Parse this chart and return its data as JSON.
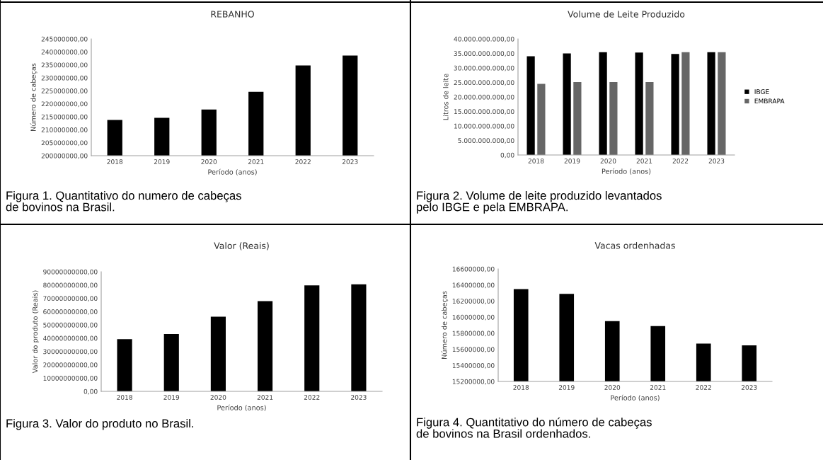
{
  "chart_data": [
    {
      "type": "bar",
      "title": "REBANHO",
      "xlabel": "Período (anos)",
      "ylabel": "Número de cabeças",
      "categories": [
        "2018",
        "2019",
        "2020",
        "2021",
        "2022",
        "2023"
      ],
      "series": [
        {
          "color": "#000000",
          "values": [
            213800000,
            214600000,
            217800000,
            224600000,
            234800000,
            238600000
          ]
        }
      ],
      "ylim": [
        200000000,
        245000000
      ],
      "yticks": [
        {
          "value": 200000000,
          "label": "200000000,00"
        },
        {
          "value": 205000000,
          "label": "205000000,00"
        },
        {
          "value": 210000000,
          "label": "210000000,00"
        },
        {
          "value": 215000000,
          "label": "215000000,00"
        },
        {
          "value": 220000000,
          "label": "220000000,00"
        },
        {
          "value": 225000000,
          "label": "225000000,00"
        },
        {
          "value": 230000000,
          "label": "230000000,00"
        },
        {
          "value": 235000000,
          "label": "235000000,00"
        },
        {
          "value": 240000000,
          "label": "240000000,00"
        },
        {
          "value": 245000000,
          "label": "245000000,00"
        }
      ],
      "grid": false,
      "legend": false,
      "annotations": [
        "Figura 1. Quantitativo do numero de cabeças\nde bovinos na Brasil."
      ]
    },
    {
      "type": "bar",
      "title": "Volume de Leite Produzido",
      "xlabel": "Período (anos)",
      "ylabel": "Litros de leite",
      "categories": [
        "2018",
        "2019",
        "2020",
        "2021",
        "2022",
        "2023"
      ],
      "series": [
        {
          "name": "IBGE",
          "color": "#000000",
          "values": [
            34000000000,
            35000000000,
            35400000000,
            35300000000,
            34800000000,
            35400000000
          ]
        },
        {
          "name": "EMBRAPA",
          "color": "#666666",
          "values": [
            24500000000,
            25100000000,
            25100000000,
            25100000000,
            35400000000,
            35400000000
          ]
        }
      ],
      "ylim": [
        0,
        40000000000
      ],
      "yticks": [
        {
          "value": 0,
          "label": "0,00"
        },
        {
          "value": 5000000000,
          "label": "5.000.000.000,00"
        },
        {
          "value": 10000000000,
          "label": "10.000.000.000,00"
        },
        {
          "value": 15000000000,
          "label": "15.000.000.000,00"
        },
        {
          "value": 20000000000,
          "label": "20.000.000.000,00"
        },
        {
          "value": 25000000000,
          "label": "25.000.000.000,00"
        },
        {
          "value": 30000000000,
          "label": "30.000.000.000,00"
        },
        {
          "value": 35000000000,
          "label": "35.000.000.000,00"
        },
        {
          "value": 40000000000,
          "label": "40.000.000.000,00"
        }
      ],
      "grid": false,
      "legend": "right",
      "annotations": [
        "Figura 2. Volume de leite produzido levantados\npelo IBGE e pela EMBRAPA."
      ]
    },
    {
      "type": "bar",
      "title": "Valor (Reais)",
      "xlabel": "Período (anos)",
      "ylabel": "Valor do produto (Reais)",
      "categories": [
        "2018",
        "2019",
        "2020",
        "2021",
        "2022",
        "2023"
      ],
      "series": [
        {
          "color": "#000000",
          "values": [
            39300000000,
            43200000000,
            56200000000,
            67900000000,
            79700000000,
            80500000000
          ]
        }
      ],
      "ylim": [
        0,
        90000000000
      ],
      "yticks": [
        {
          "value": 0,
          "label": "0,00"
        },
        {
          "value": 10000000000,
          "label": "10000000000,00"
        },
        {
          "value": 20000000000,
          "label": "20000000000,00"
        },
        {
          "value": 30000000000,
          "label": "30000000000,00"
        },
        {
          "value": 40000000000,
          "label": "40000000000,00"
        },
        {
          "value": 50000000000,
          "label": "50000000000,00"
        },
        {
          "value": 60000000000,
          "label": "60000000000,00"
        },
        {
          "value": 70000000000,
          "label": "70000000000,00"
        },
        {
          "value": 80000000000,
          "label": "80000000000,00"
        },
        {
          "value": 90000000000,
          "label": "90000000000,00"
        }
      ],
      "grid": false,
      "legend": false,
      "annotations": [
        "Figura 3. Valor do produto no Brasil."
      ]
    },
    {
      "type": "bar",
      "title": "Vacas ordenhadas",
      "xlabel": "Período (anos)",
      "ylabel": "Número de cabeças",
      "categories": [
        "2018",
        "2019",
        "2020",
        "2021",
        "2022",
        "2023"
      ],
      "series": [
        {
          "color": "#000000",
          "values": [
            16350000,
            16290000,
            15950000,
            15890000,
            15670000,
            15650000
          ]
        }
      ],
      "ylim": [
        15200000,
        16600000
      ],
      "yticks": [
        {
          "value": 15200000,
          "label": "15200000,00"
        },
        {
          "value": 15400000,
          "label": "15400000,00"
        },
        {
          "value": 15600000,
          "label": "15600000,00"
        },
        {
          "value": 15800000,
          "label": "15800000,00"
        },
        {
          "value": 16000000,
          "label": "16000000,00"
        },
        {
          "value": 16200000,
          "label": "16200000,00"
        },
        {
          "value": 16400000,
          "label": "16400000,00"
        },
        {
          "value": 16600000,
          "label": "16600000,00"
        }
      ],
      "grid": false,
      "legend": false,
      "annotations": [
        "Figura 4. Quantitativo do número de cabeças\nde bovinos na Brasil ordenhados."
      ]
    }
  ]
}
